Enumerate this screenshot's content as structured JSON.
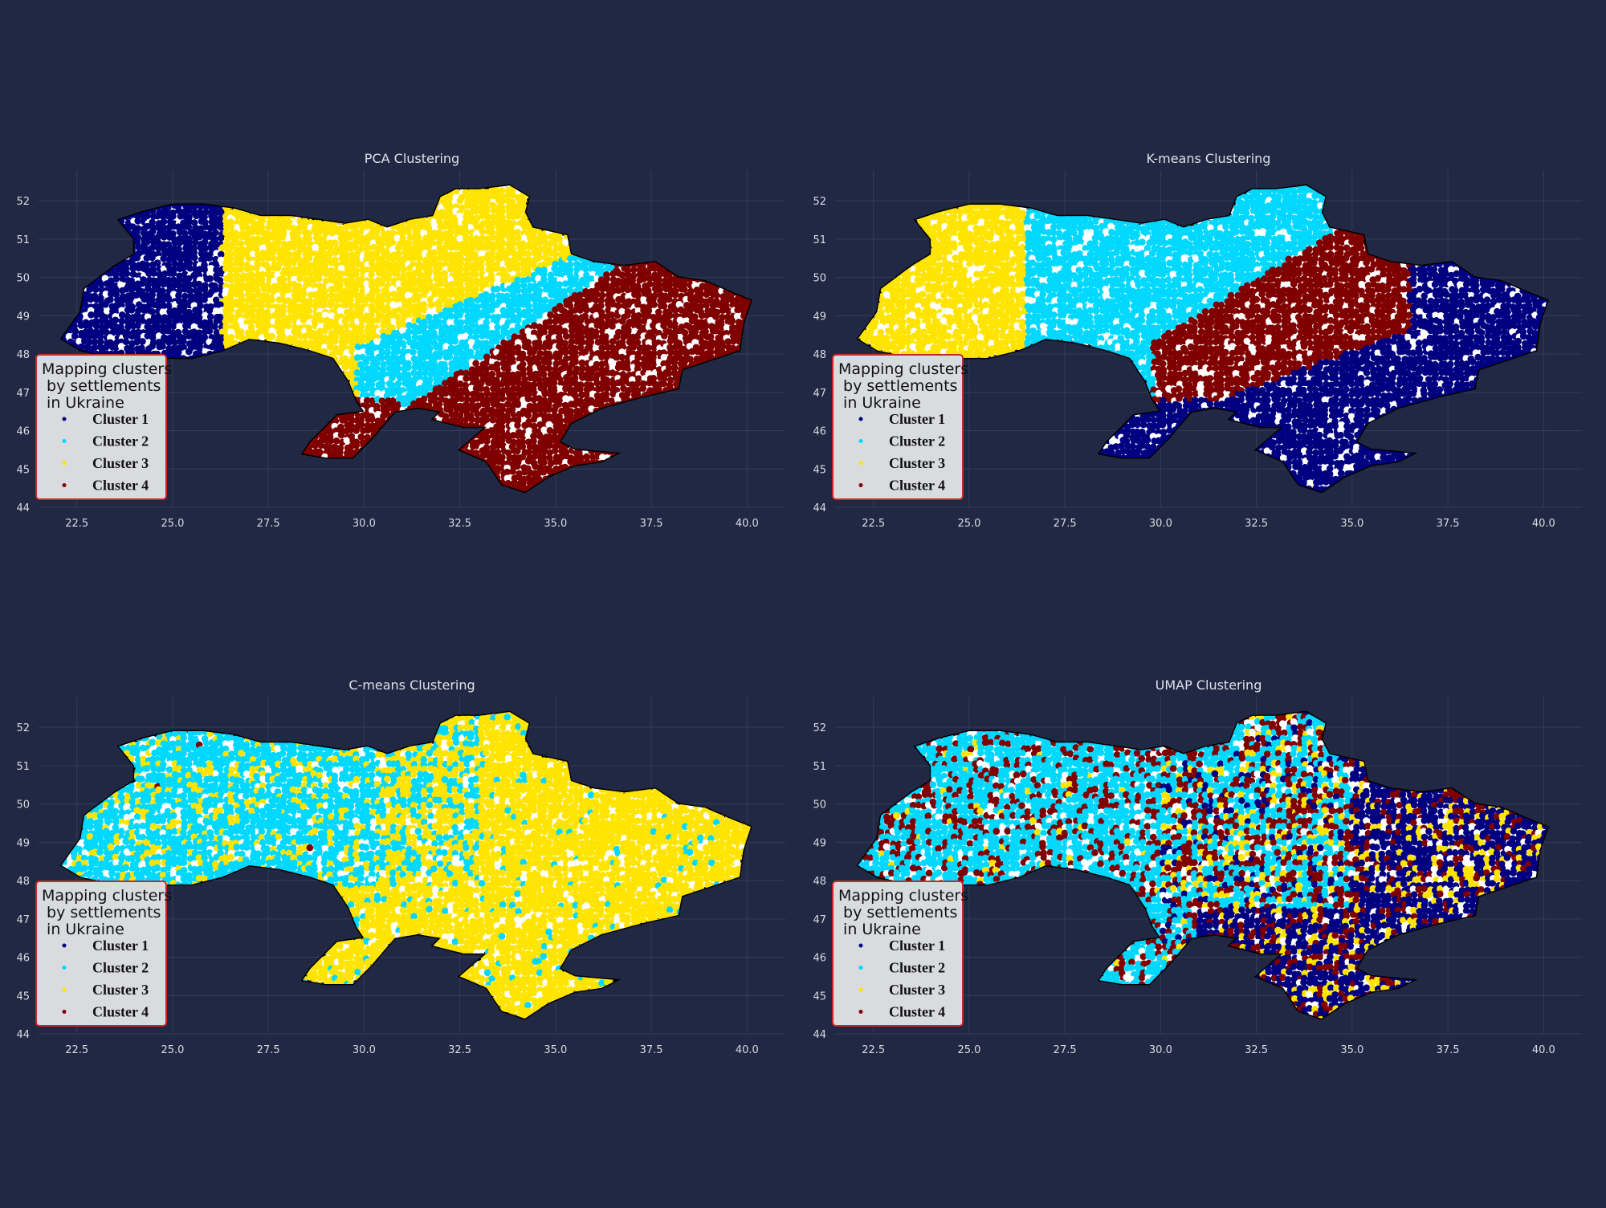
{
  "legend": {
    "title_lines": [
      "Mapping clusters",
      " by settlements",
      " in Ukraine"
    ],
    "clusters": [
      {
        "label": "Cluster 1",
        "color": "#000080"
      },
      {
        "label": "Cluster 2",
        "color": "#00d8ff"
      },
      {
        "label": "Cluster 3",
        "color": "#ffe400"
      },
      {
        "label": "Cluster 4",
        "color": "#800000"
      }
    ]
  },
  "chart_data": [
    {
      "type": "scatter",
      "title": "PCA Clustering",
      "xlim": [
        21.5,
        41.0
      ],
      "ylim": [
        44.0,
        52.8
      ],
      "xticks": [
        "22.5",
        "25.0",
        "27.5",
        "30.0",
        "32.5",
        "35.0",
        "37.5",
        "40.0"
      ],
      "yticks": [
        "44",
        "45",
        "46",
        "47",
        "48",
        "49",
        "50",
        "51",
        "52"
      ],
      "grid": true,
      "legend_position": "lower-left",
      "regions_by_cluster": {
        "Cluster 1": "west: x 22.0-26.3",
        "Cluster 2": "central-east and Odesa north: x 29.8-36.5",
        "Cluster 3": "center and north: x 26.3-35.0",
        "Cluster 4": "east, south, Crimea and Danube area"
      }
    },
    {
      "type": "scatter",
      "title": "K-means Clustering",
      "xlim": [
        21.5,
        41.0
      ],
      "ylim": [
        44.0,
        52.8
      ],
      "xticks": [
        "22.5",
        "25.0",
        "27.5",
        "30.0",
        "32.5",
        "35.0",
        "37.5",
        "40.0"
      ],
      "yticks": [
        "44",
        "45",
        "46",
        "47",
        "48",
        "49",
        "50",
        "51",
        "52"
      ],
      "grid": true,
      "legend_position": "lower-left",
      "regions_by_cluster": {
        "Cluster 1": "east, south and Crimea",
        "Cluster 2": "center-north: x 26.5-34.5",
        "Cluster 3": "west: x 22.0-26.5",
        "Cluster 4": "central band: x 30.0-36.5"
      }
    },
    {
      "type": "scatter",
      "title": "C-means Clustering",
      "xlim": [
        21.5,
        41.0
      ],
      "ylim": [
        44.0,
        52.8
      ],
      "xticks": [
        "22.5",
        "25.0",
        "27.5",
        "30.0",
        "32.5",
        "35.0",
        "37.5",
        "40.0"
      ],
      "yticks": [
        "44",
        "45",
        "46",
        "47",
        "48",
        "49",
        "50",
        "51",
        "52"
      ],
      "grid": true,
      "legend_position": "lower-left",
      "regions_by_cluster": {
        "Cluster 2": "west and center (mixed with Cluster 3)",
        "Cluster 3": "east, south and Crimea; scattered west"
      }
    },
    {
      "type": "scatter",
      "title": "UMAP Clustering",
      "xlim": [
        21.5,
        41.0
      ],
      "ylim": [
        44.0,
        52.8
      ],
      "xticks": [
        "22.5",
        "25.0",
        "27.5",
        "30.0",
        "32.5",
        "35.0",
        "37.5",
        "40.0"
      ],
      "yticks": [
        "44",
        "45",
        "46",
        "47",
        "48",
        "49",
        "50",
        "51",
        "52"
      ],
      "grid": true,
      "legend_position": "lower-left",
      "regions_by_cluster": {
        "Cluster 1": "east and south",
        "Cluster 2": "west and center",
        "Cluster 3": "scattered center-south",
        "Cluster 4": "scattered throughout"
      }
    }
  ]
}
